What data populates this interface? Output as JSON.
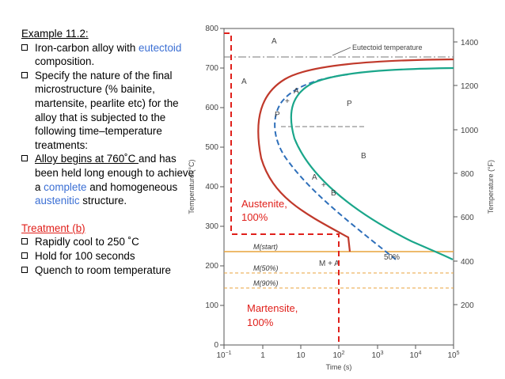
{
  "slide": {
    "example_title": "Example 11.2:",
    "bullets": [
      {
        "pre": "Iron-carbon alloy with ",
        "hl": "eutectoid",
        "post": " composition."
      },
      {
        "text": "Specify the nature of the final microstructure (% bainite, martensite, pearlite etc) for the alloy that is subjected to the following time–temperature treatments:"
      },
      {
        "u": "Alloy begins at 760˚C ",
        "m": "and has been held long enough to achieve a ",
        "hl1": "complete",
        "m2": " and homogeneous ",
        "hl2": "austenitic",
        "post": " structure."
      }
    ],
    "treatment_title": "Treatment (b)",
    "treatment_steps": [
      "Rapidly cool to 250 ˚C",
      "Hold for 100 seconds",
      "Quench to room temperature"
    ]
  },
  "diagram": {
    "y_left_label": "Temperature (°C)",
    "y_right_label": "Temperature (°F)",
    "x_label": "Time (s)",
    "y_left_ticks": [
      "0",
      "100",
      "200",
      "300",
      "400",
      "500",
      "600",
      "700",
      "800"
    ],
    "y_right_ticks": [
      "200",
      "400",
      "600",
      "800",
      "1000",
      "1200",
      "1400"
    ],
    "x_ticks_base": [
      "10",
      "1",
      "10",
      "10",
      "10",
      "10",
      "10"
    ],
    "x_ticks_exp": [
      "−1",
      "",
      "",
      "2",
      "3",
      "4",
      "5"
    ],
    "eutectoid_label": "Eutectoid temperature",
    "region_labels": [
      "A",
      "A",
      "P",
      "B",
      "P",
      "+",
      "A",
      "A",
      "+",
      "B",
      "M + A",
      "50%"
    ],
    "m_start": "M(start)",
    "m_50": "M(50%)",
    "m_90": "M(90%)",
    "austenite_note": [
      "Austenite,",
      "100%"
    ],
    "martensite_note": [
      "Martensite,",
      "100%"
    ],
    "colors": {
      "start_curve": "#c0392b",
      "finish_curve": "#1aa68a",
      "fifty_curve": "#2e6fba",
      "path": "#e0201b",
      "mstart": "#e8a33c",
      "accent_blue": "#3b6fd4"
    }
  }
}
